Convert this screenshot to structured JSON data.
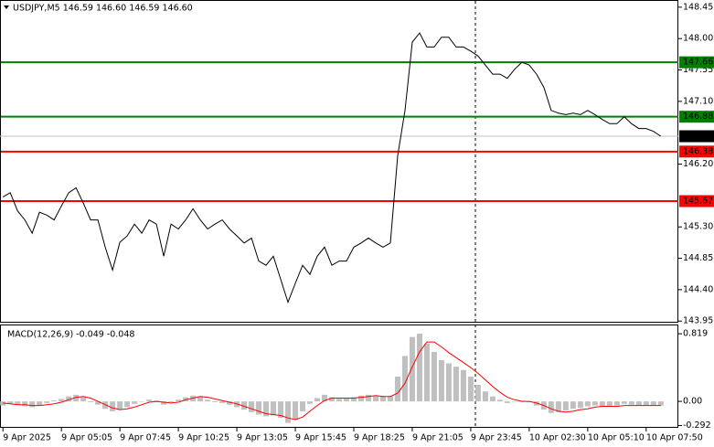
{
  "chart_data": [
    {
      "type": "line",
      "title": "USDJPY,M5  146.59 146.60 146.59 146.60",
      "color": "#000000",
      "xlim": [
        -0.4,
        92.4
      ],
      "ylim": [
        143.94,
        148.54
      ],
      "yticks": [
        148.45,
        {
          "value": 148,
          "label": "148.00"
        },
        147.55,
        {
          "value": 147.1,
          "label": "147.10"
        },
        {
          "value": 146.2,
          "label": "146.20"
        },
        {
          "value": 145.3,
          "label": "145.30"
        },
        144.85,
        {
          "value": 144.4,
          "label": "144.40"
        },
        143.95
      ],
      "values": [
        145.73,
        145.79,
        145.53,
        145.4,
        145.21,
        145.51,
        145.47,
        145.4,
        145.6,
        145.79,
        145.86,
        145.64,
        145.4,
        145.4,
        145.01,
        144.68,
        145.08,
        145.17,
        145.34,
        145.21,
        145.4,
        145.34,
        144.88,
        145.34,
        145.27,
        145.4,
        145.56,
        145.4,
        145.27,
        145.34,
        145.4,
        145.27,
        145.17,
        145.07,
        145.14,
        144.81,
        144.75,
        144.88,
        144.55,
        144.22,
        144.49,
        144.75,
        144.62,
        144.88,
        145.01,
        144.75,
        144.81,
        144.81,
        145.01,
        145.07,
        145.14,
        145.07,
        145.01,
        145.07,
        146.32,
        146.97,
        147.95,
        148.08,
        147.88,
        147.88,
        148.02,
        148.02,
        147.88,
        147.88,
        147.82,
        147.75,
        147.62,
        147.49,
        147.49,
        147.43,
        147.56,
        147.66,
        147.62,
        147.49,
        147.3,
        146.97,
        146.93,
        146.91,
        146.93,
        146.91,
        146.97,
        146.91,
        146.84,
        146.78,
        146.78,
        146.88,
        146.78,
        146.71,
        146.71,
        146.67,
        146.6
      ],
      "levels": [
        {
          "value": 147.66,
          "color": "#008000"
        },
        {
          "value": 146.88,
          "color": "#008000"
        },
        {
          "value": 146.38,
          "color": "#ff0000"
        },
        {
          "value": 145.67,
          "color": "#ff0000"
        }
      ],
      "current": {
        "value": 146.6,
        "label": "146.60"
      }
    },
    {
      "type": "macd",
      "title": "MACD(12,26,9) -0.049 -0.048",
      "xlim": [
        -0.4,
        92.4
      ],
      "ylim": [
        -0.32,
        0.92
      ],
      "yticks": [
        0.819,
        {
          "value": 0,
          "label": "0.00"
        },
        -0.292
      ],
      "xticks": [
        {
          "value": 0,
          "label": "9 Apr 2025"
        },
        {
          "value": 8,
          "label": "9 Apr 05:05"
        },
        {
          "value": 16,
          "label": "9 Apr 07:45"
        },
        {
          "value": 24,
          "label": "9 Apr 10:25"
        },
        {
          "value": 32,
          "label": "9 Apr 13:05"
        },
        {
          "value": 40,
          "label": "9 Apr 15:45"
        },
        {
          "value": 48,
          "label": "9 Apr 18:25"
        },
        {
          "value": 56,
          "label": "9 Apr 21:05"
        },
        {
          "value": 64,
          "label": "9 Apr 23:45"
        },
        {
          "value": 72,
          "label": "10 Apr 02:30"
        },
        {
          "value": 80,
          "label": "10 Apr 05:10"
        },
        {
          "value": 88,
          "label": "10 Apr 07:50"
        }
      ],
      "histogram": {
        "color": "#c0c0c0",
        "values": [
          -0.05,
          -0.03,
          -0.04,
          -0.06,
          -0.07,
          -0.05,
          -0.02,
          0.01,
          0.03,
          0.06,
          0.08,
          0.05,
          -0.01,
          -0.04,
          -0.09,
          -0.12,
          -0.1,
          -0.07,
          -0.03,
          0.0,
          0.02,
          0.01,
          -0.04,
          -0.01,
          0.02,
          0.05,
          0.07,
          0.06,
          0.02,
          -0.01,
          -0.02,
          -0.04,
          -0.07,
          -0.1,
          -0.13,
          -0.16,
          -0.18,
          -0.17,
          -0.2,
          -0.26,
          -0.22,
          -0.12,
          -0.03,
          0.04,
          0.08,
          0.05,
          0.03,
          0.04,
          0.05,
          0.07,
          0.08,
          0.07,
          0.06,
          0.06,
          0.3,
          0.55,
          0.78,
          0.82,
          0.7,
          0.6,
          0.5,
          0.46,
          0.42,
          0.38,
          0.3,
          0.2,
          0.12,
          0.06,
          0.02,
          -0.02,
          0.0,
          0.01,
          -0.01,
          -0.05,
          -0.1,
          -0.14,
          -0.13,
          -0.11,
          -0.09,
          -0.08,
          -0.06,
          -0.05,
          -0.06,
          -0.06,
          -0.05,
          -0.03,
          -0.04,
          -0.05,
          -0.05,
          -0.05,
          -0.05
        ]
      },
      "signal": {
        "color": "#ff0000",
        "values": [
          -0.02,
          -0.03,
          -0.04,
          -0.04,
          -0.05,
          -0.05,
          -0.04,
          -0.03,
          -0.01,
          0.02,
          0.05,
          0.06,
          0.04,
          0.0,
          -0.04,
          -0.08,
          -0.1,
          -0.09,
          -0.07,
          -0.04,
          -0.01,
          0.0,
          -0.01,
          -0.02,
          -0.01,
          0.02,
          0.04,
          0.06,
          0.05,
          0.03,
          0.01,
          -0.01,
          -0.03,
          -0.06,
          -0.09,
          -0.12,
          -0.15,
          -0.16,
          -0.17,
          -0.2,
          -0.22,
          -0.19,
          -0.12,
          -0.05,
          0.01,
          0.04,
          0.04,
          0.04,
          0.04,
          0.05,
          0.06,
          0.07,
          0.06,
          0.06,
          0.1,
          0.22,
          0.42,
          0.6,
          0.72,
          0.72,
          0.66,
          0.59,
          0.53,
          0.47,
          0.41,
          0.34,
          0.26,
          0.18,
          0.11,
          0.05,
          0.02,
          0.0,
          0.0,
          -0.02,
          -0.05,
          -0.09,
          -0.12,
          -0.13,
          -0.12,
          -0.1,
          -0.09,
          -0.07,
          -0.06,
          -0.06,
          -0.06,
          -0.05,
          -0.05,
          -0.05,
          -0.05,
          -0.05,
          -0.05
        ]
      }
    }
  ]
}
